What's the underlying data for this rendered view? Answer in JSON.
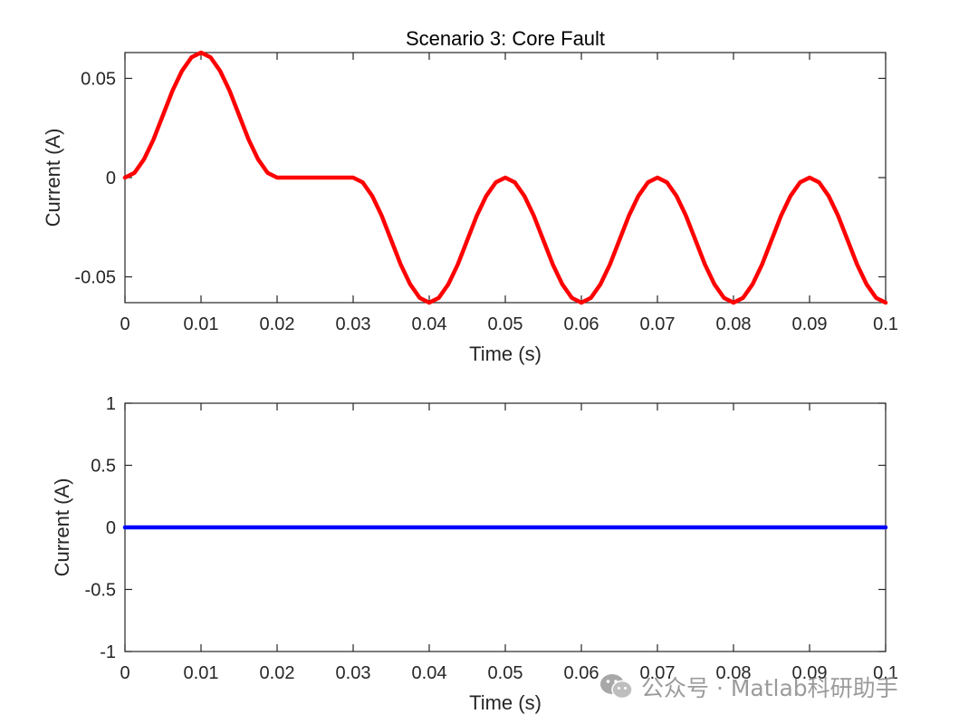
{
  "chart_data": [
    {
      "type": "line",
      "title": "Scenario 3: Core Fault",
      "xlabel": "Time (s)",
      "ylabel": "Current (A)",
      "xlim": [
        0,
        0.1
      ],
      "ylim": [
        -0.063,
        0.063
      ],
      "xticks": [
        0,
        0.01,
        0.02,
        0.03,
        0.04,
        0.05,
        0.06,
        0.07,
        0.08,
        0.09,
        0.1
      ],
      "xtick_labels": [
        "0",
        "0.01",
        "0.02",
        "0.03",
        "0.04",
        "0.05",
        "0.06",
        "0.07",
        "0.08",
        "0.09",
        "0.1"
      ],
      "yticks": [
        -0.05,
        0,
        0.05
      ],
      "ytick_labels": [
        "-0.05",
        "0",
        "0.05"
      ],
      "grid": false,
      "series": [
        {
          "color": "#ff0000",
          "x": [
            0,
            0.00125,
            0.0025,
            0.00375,
            0.005,
            0.00625,
            0.0075,
            0.00875,
            0.01,
            0.01125,
            0.0125,
            0.01375,
            0.015,
            0.01625,
            0.0175,
            0.01875,
            0.02,
            0.025,
            0.03,
            0.03125,
            0.0325,
            0.03375,
            0.035,
            0.03625,
            0.0375,
            0.03875,
            0.04,
            0.04125,
            0.0425,
            0.04375,
            0.045,
            0.04625,
            0.0475,
            0.04875,
            0.05,
            0.05125,
            0.0525,
            0.05375,
            0.055,
            0.05625,
            0.0575,
            0.05875,
            0.06,
            0.06125,
            0.0625,
            0.06375,
            0.065,
            0.06625,
            0.0675,
            0.06875,
            0.07,
            0.07125,
            0.0725,
            0.07375,
            0.075,
            0.07625,
            0.0775,
            0.07875,
            0.08,
            0.08125,
            0.0825,
            0.08375,
            0.085,
            0.08625,
            0.0875,
            0.08875,
            0.09,
            0.09125,
            0.0925,
            0.09375,
            0.095,
            0.09625,
            0.0975,
            0.09875,
            0.1
          ],
          "y": [
            0,
            0.0024,
            0.0092,
            0.0192,
            0.0315,
            0.0438,
            0.0538,
            0.0606,
            0.063,
            0.0606,
            0.0538,
            0.0438,
            0.0315,
            0.0192,
            0.0092,
            0.0024,
            0,
            0,
            0,
            -0.0024,
            -0.0092,
            -0.0192,
            -0.0315,
            -0.0438,
            -0.0538,
            -0.0606,
            -0.063,
            -0.0606,
            -0.0538,
            -0.0438,
            -0.0315,
            -0.0192,
            -0.0092,
            -0.0024,
            0,
            -0.0024,
            -0.0092,
            -0.0192,
            -0.0315,
            -0.0438,
            -0.0538,
            -0.0606,
            -0.063,
            -0.0606,
            -0.0538,
            -0.0438,
            -0.0315,
            -0.0192,
            -0.0092,
            -0.0024,
            0,
            -0.0024,
            -0.0092,
            -0.0192,
            -0.0315,
            -0.0438,
            -0.0538,
            -0.0606,
            -0.063,
            -0.0606,
            -0.0538,
            -0.0438,
            -0.0315,
            -0.0192,
            -0.0092,
            -0.0024,
            0,
            -0.0024,
            -0.0092,
            -0.0192,
            -0.0315,
            -0.0438,
            -0.0538,
            -0.0606,
            -0.063
          ]
        }
      ]
    },
    {
      "type": "line",
      "title": "",
      "xlabel": "Time (s)",
      "ylabel": "Current (A)",
      "xlim": [
        0,
        0.1
      ],
      "ylim": [
        -1,
        1
      ],
      "xticks": [
        0,
        0.01,
        0.02,
        0.03,
        0.04,
        0.05,
        0.06,
        0.07,
        0.08,
        0.09,
        0.1
      ],
      "xtick_labels": [
        "0",
        "0.01",
        "0.02",
        "0.03",
        "0.04",
        "0.05",
        "0.06",
        "0.07",
        "0.08",
        "0.09",
        "0.1"
      ],
      "yticks": [
        -1,
        -0.5,
        0,
        0.5,
        1
      ],
      "ytick_labels": [
        "-1",
        "-0.5",
        "0",
        "0.5",
        "1"
      ],
      "grid": false,
      "series": [
        {
          "color": "#0000ff",
          "x": [
            0,
            0.1
          ],
          "y": [
            0,
            0
          ]
        }
      ]
    }
  ],
  "watermark": {
    "text": "公众号 · Matlab科研助手",
    "icon": "wechat-icon"
  }
}
